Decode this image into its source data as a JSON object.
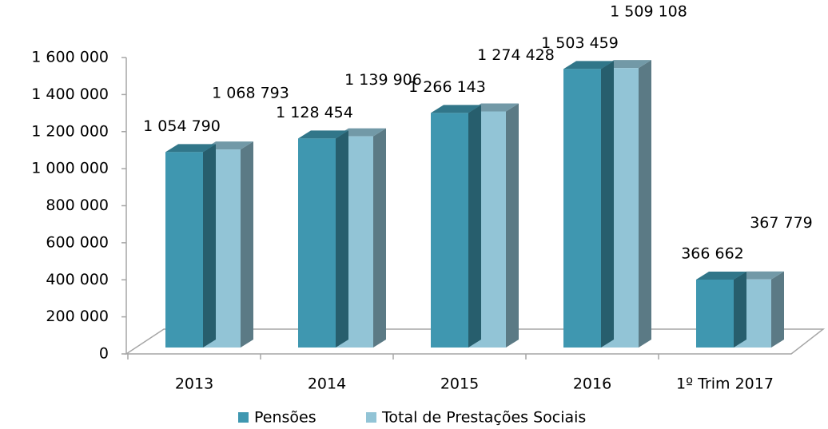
{
  "chart_data": {
    "type": "bar3d",
    "categories": [
      "2013",
      "2014",
      "2015",
      "2016",
      "1º Trim 2017"
    ],
    "series": [
      {
        "name": "Pensões",
        "color": "#3f97b0",
        "values": [
          1054790,
          1128454,
          1266143,
          1503459,
          366662
        ],
        "value_labels": [
          "1 054 790",
          "1 128 454",
          "1 266 143",
          "1 503 459",
          "366 662"
        ]
      },
      {
        "name": "Total de Prestações Sociais",
        "color": "#92c4d6",
        "values": [
          1068793,
          1139906,
          1274428,
          1509108,
          367779
        ],
        "value_labels": [
          "1 068 793",
          "1 139 906",
          "1 274 428",
          "1 509 108",
          "367 779"
        ]
      }
    ],
    "ylim": [
      0,
      1600000
    ],
    "yticks": [
      0,
      {
        "value": 200000,
        "label": "200 000"
      },
      {
        "value": 400000,
        "label": "400 000"
      },
      {
        "value": 600000,
        "label": "600 000"
      },
      {
        "value": 800000,
        "label": "800 000"
      },
      {
        "value": 1000000,
        "label": "1 000 000"
      },
      {
        "value": 1200000,
        "label": "1 200 000"
      },
      {
        "value": 1400000,
        "label": "1 400 000"
      },
      {
        "value": 1600000,
        "label": "1 600 000"
      }
    ],
    "legend": "bottom"
  }
}
